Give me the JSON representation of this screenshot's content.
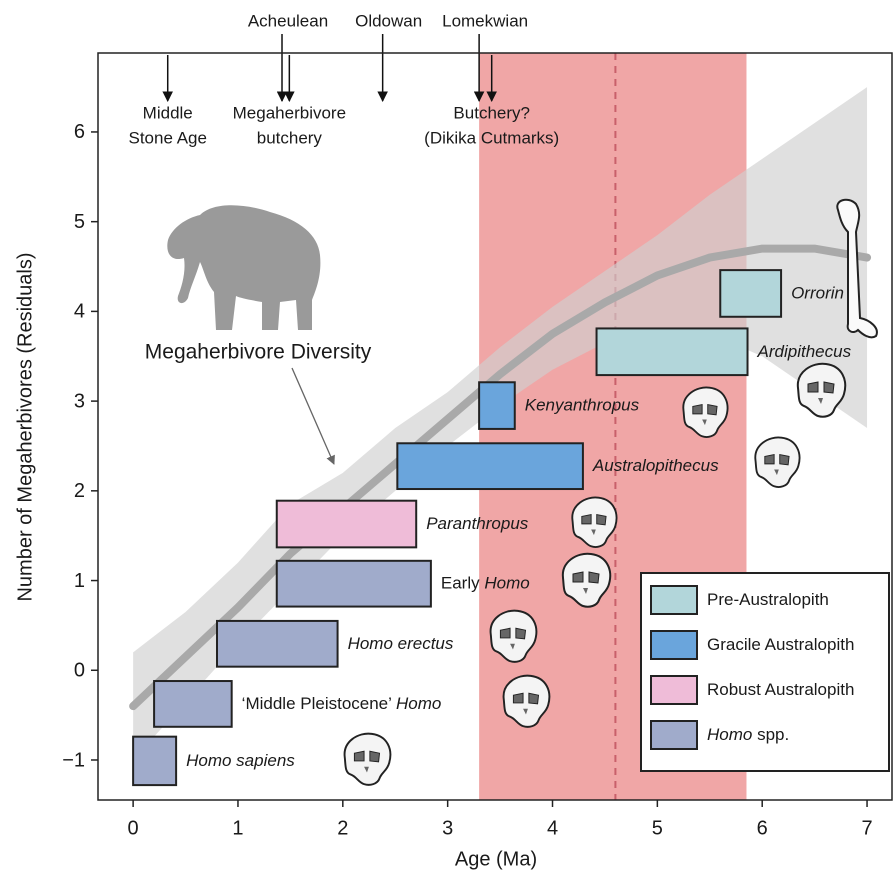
{
  "chart_data": {
    "type": "range-bar",
    "x_label": "Age (Ma)",
    "y_label": "Number of Megaherbivores (Residuals)",
    "xlim": [
      -0.335,
      7.238
    ],
    "ylim": [
      -1.446,
      6.88
    ],
    "xticks": [
      0,
      1,
      2,
      3,
      4,
      5,
      6,
      7
    ],
    "yticks": [
      {
        "value": -1,
        "label": "−1"
      },
      0,
      1,
      2,
      3,
      4,
      5,
      6
    ],
    "highlight": {
      "xrange": [
        3.3,
        5.85
      ],
      "color": "#f0a6a6",
      "dashed_x": 4.6,
      "dashed_color": "#c8606a"
    },
    "trend": {
      "name": "Megaherbivore Diversity",
      "color": "#a9a9a9",
      "band_color": "#cfcfcf",
      "x": [
        0,
        0.5,
        1,
        1.5,
        2,
        2.5,
        3,
        3.5,
        4,
        4.5,
        5,
        5.5,
        6,
        6.5,
        7
      ],
      "values": [
        -0.4,
        0.15,
        0.7,
        1.3,
        1.8,
        2.3,
        2.8,
        3.3,
        3.75,
        4.1,
        4.4,
        4.6,
        4.7,
        4.7,
        4.6
      ],
      "lower": [
        -1.0,
        -0.35,
        0.3,
        0.9,
        1.5,
        2.0,
        2.5,
        2.95,
        3.35,
        3.65,
        3.8,
        3.75,
        3.5,
        3.1,
        2.7
      ],
      "upper": [
        0.2,
        0.65,
        1.2,
        1.85,
        2.2,
        2.7,
        3.1,
        3.6,
        4.05,
        4.45,
        4.85,
        5.3,
        5.7,
        6.1,
        6.5
      ]
    },
    "groups": [
      {
        "name": [
          {
            "text": "Pre-Australopith"
          }
        ],
        "color": "#b2d6da"
      },
      {
        "name": [
          {
            "text": "Gracile Australopith"
          }
        ],
        "color": "#6aa5dc"
      },
      {
        "name": [
          {
            "text": "Robust Australopith"
          }
        ],
        "color": "#efbcd8"
      },
      {
        "name": [
          {
            "text": "Homo",
            "style": "italic"
          },
          {
            "text": " spp."
          }
        ],
        "color": "#a0abcb"
      }
    ],
    "legend": "lower right",
    "bars": [
      {
        "label": [
          {
            "text": "Homo sapiens",
            "style": "italic"
          }
        ],
        "group": 3,
        "xmin": 0,
        "xmax": 0.41,
        "ymin": -1.28,
        "ymax": -0.74
      },
      {
        "label": [
          {
            "text": "‘Middle Pleistocene’ "
          },
          {
            "text": "Homo",
            "style": "italic"
          }
        ],
        "group": 3,
        "xmin": 0.2,
        "xmax": 0.94,
        "ymin": -0.63,
        "ymax": -0.12
      },
      {
        "label": [
          {
            "text": "Homo erectus",
            "style": "italic"
          }
        ],
        "group": 3,
        "xmin": 0.8,
        "xmax": 1.95,
        "ymin": 0.04,
        "ymax": 0.55
      },
      {
        "label": [
          {
            "text": "Early "
          },
          {
            "text": "Homo",
            "style": "italic"
          }
        ],
        "group": 3,
        "xmin": 1.37,
        "xmax": 2.84,
        "ymin": 0.71,
        "ymax": 1.22
      },
      {
        "label": [
          {
            "text": "Paranthropus",
            "style": "italic"
          }
        ],
        "group": 2,
        "xmin": 1.37,
        "xmax": 2.7,
        "ymin": 1.37,
        "ymax": 1.89
      },
      {
        "label": [
          {
            "text": "Australopithecus",
            "style": "italic"
          }
        ],
        "group": 1,
        "xmin": 2.52,
        "xmax": 4.29,
        "ymin": 2.02,
        "ymax": 2.53
      },
      {
        "label": [
          {
            "text": "Kenyanthropus",
            "style": "italic"
          }
        ],
        "group": 1,
        "xmin": 3.3,
        "xmax": 3.64,
        "ymin": 2.69,
        "ymax": 3.21
      },
      {
        "label": [
          {
            "text": "Ardipithecus",
            "style": "italic"
          }
        ],
        "group": 0,
        "xmin": 4.42,
        "xmax": 5.86,
        "ymin": 3.29,
        "ymax": 3.81
      },
      {
        "label": [
          {
            "text": "Orrorin",
            "style": "italic"
          }
        ],
        "group": 0,
        "xmin": 5.6,
        "xmax": 6.18,
        "ymin": 3.94,
        "ymax": 4.46
      }
    ],
    "events": [
      {
        "lines": [
          "Middle",
          "Stone Age"
        ],
        "x": 0.33,
        "side": "below"
      },
      {
        "lines": [
          "Acheulean"
        ],
        "x": 1.42,
        "side": "above"
      },
      {
        "lines": [
          "Megaherbivore",
          "butchery"
        ],
        "x": 1.49,
        "side": "below"
      },
      {
        "lines": [
          "Oldowan"
        ],
        "x": 2.38,
        "side": "above"
      },
      {
        "lines": [
          "Lomekwian"
        ],
        "x": 3.3,
        "side": "above"
      },
      {
        "lines": [
          "Butchery?",
          "(Dikika Cutmarks)"
        ],
        "x": 3.42,
        "side": "below"
      }
    ]
  }
}
